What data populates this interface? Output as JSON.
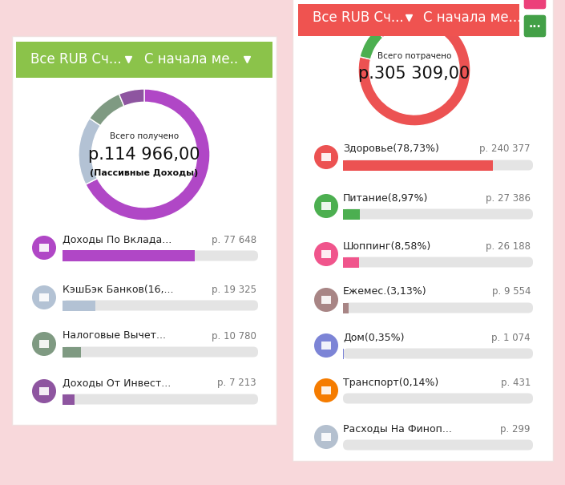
{
  "chart_data": [
    {
      "type": "donut",
      "header": [
        "Все RUB Сч...",
        "С начала ме.."
      ],
      "title": "Всего получено",
      "total_label": "р.114 966,00",
      "subtitle": "(Пассивные Доходы)",
      "categories": [
        "Доходы По Вклада...",
        "КэшБэк Банков(16,...",
        "Налоговые Вычет...",
        "Доходы От Инвест..."
      ],
      "values": [
        77648,
        19325,
        10780,
        7213
      ],
      "value_labels": [
        "р. 77 648",
        "р. 19 325",
        "р. 10 780",
        "р. 7 213"
      ],
      "colors": [
        "#b047c6",
        "#b3c2d4",
        "#7f9a82",
        "#8e55a0"
      ],
      "xlim": [
        0,
        114966
      ],
      "tick_labels": false
    },
    {
      "type": "donut",
      "header": [
        "Все RUB Сч...",
        "С начала ме..."
      ],
      "title": "Всего потрачено",
      "total_label": "р.305 309,00",
      "button": "...",
      "categories": [
        "Здоровье(78,73%)",
        "Питание(8,97%)",
        "Шоппинг(8,58%)",
        "Ежемес.(3,13%)",
        "Дом(0,35%)",
        "Транспорт(0,14%)",
        "Расходы На Финоп..."
      ],
      "values": [
        240377,
        27386,
        26188,
        9554,
        1074,
        431,
        299
      ],
      "value_labels": [
        "р. 240 377",
        "р. 27 386",
        "р. 26 188",
        "р. 9 554",
        "р. 1 074",
        "р. 431",
        "р. 299"
      ],
      "colors": [
        "#ec5252",
        "#4caf50",
        "#f0558c",
        "#a88585",
        "#7c84d6",
        "#f57c00",
        "#b4c0cf"
      ],
      "xlim": [
        0,
        305309
      ],
      "tick_labels": false
    }
  ]
}
